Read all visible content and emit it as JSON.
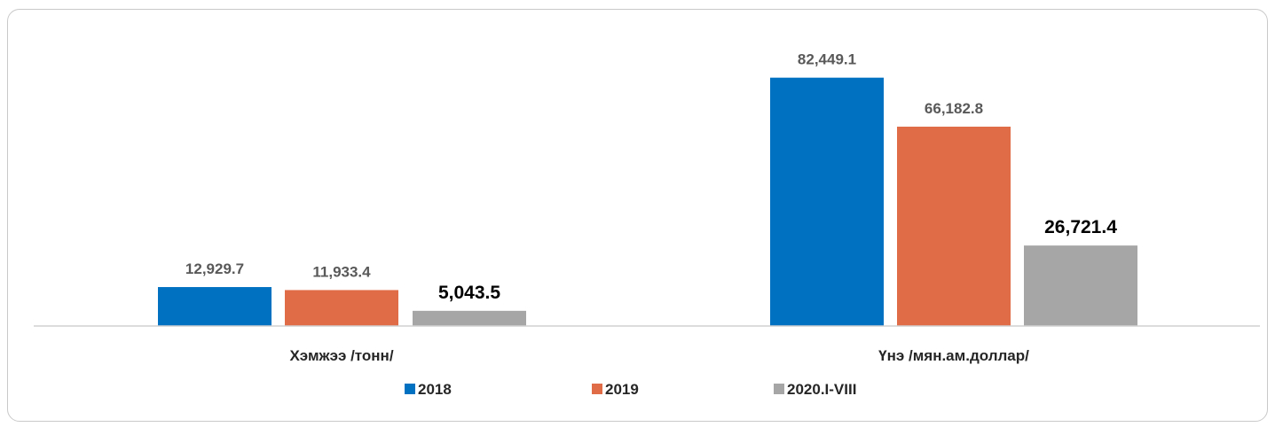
{
  "header": {
    "text": ""
  },
  "chart_data": {
    "type": "bar",
    "title": "",
    "categories": [
      "Хэмжээ /тонн/",
      "Үнэ /мян.ам.доллар/"
    ],
    "series": [
      {
        "name": "2018",
        "color": "#0070c0",
        "values": [
          12929.7,
          82449.1
        ],
        "labels": [
          "12,929.7",
          "82,449.1"
        ],
        "emphasis": false
      },
      {
        "name": "2019",
        "color": "#e06b47",
        "values": [
          11933.4,
          66182.8
        ],
        "labels": [
          "11,933.4",
          "66,182.8"
        ],
        "emphasis": false
      },
      {
        "name": "2020.I-VIII",
        "color": "#a6a6a6",
        "values": [
          5043.5,
          26721.4
        ],
        "labels": [
          "5,043.5",
          "26,721.4"
        ],
        "emphasis": true
      }
    ],
    "ylim": [
      0,
      100000
    ],
    "grid": false,
    "legend": "bottom"
  }
}
